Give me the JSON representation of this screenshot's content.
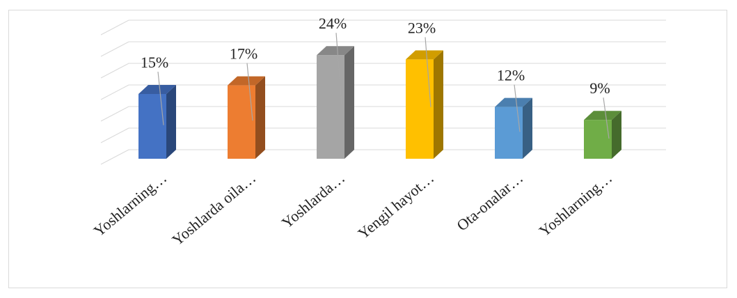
{
  "chart_data": {
    "type": "bar",
    "categories": [
      "Yoshlarning…",
      "Yoshlarda oila…",
      "Yoshlarda…",
      "Yengil hayot…",
      "Ota-onalar…",
      "Yoshlarning…"
    ],
    "values": [
      15,
      17,
      24,
      23,
      12,
      9
    ],
    "data_labels": [
      "15%",
      "17%",
      "24%",
      "23%",
      "12%",
      "9%"
    ],
    "colors": [
      "#4472c4",
      "#ed7d31",
      "#a5a5a5",
      "#ffc000",
      "#5b9bd5",
      "#70ad47"
    ],
    "ylim": [
      0,
      30
    ],
    "grid": true,
    "legend": "none",
    "title": "",
    "xlabel": "",
    "ylabel": ""
  }
}
